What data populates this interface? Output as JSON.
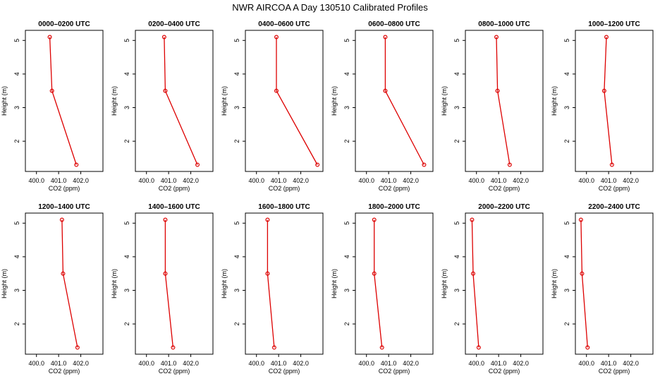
{
  "title": "NWR AIRCOA A  Day 130510  Calibrated Profiles",
  "colors": {
    "series": "#dd0000",
    "axis": "#000000",
    "background": "#ffffff"
  },
  "chart_data": [
    {
      "type": "line",
      "title": "0000–0200 UTC",
      "xlabel": "CO2 (ppm)",
      "ylabel": "Height (m)",
      "xlim": [
        399.5,
        403.0
      ],
      "ylim": [
        1.1,
        5.3
      ],
      "xticks": [
        400.0,
        401.0,
        402.0
      ],
      "xtick_labels": [
        "400.0",
        "401.0",
        "402.0"
      ],
      "yticks": [
        2,
        3,
        4,
        5
      ],
      "ytick_labels": [
        "2",
        "3",
        "4",
        "5"
      ],
      "x": [
        401.8,
        400.7,
        400.6
      ],
      "y": [
        1.3,
        3.5,
        5.1
      ]
    },
    {
      "type": "line",
      "title": "0200–0400 UTC",
      "xlabel": "CO2 (ppm)",
      "ylabel": "Height (m)",
      "xlim": [
        399.5,
        403.0
      ],
      "ylim": [
        1.1,
        5.3
      ],
      "xticks": [
        400.0,
        401.0,
        402.0
      ],
      "xtick_labels": [
        "400.0",
        "401.0",
        "402.0"
      ],
      "yticks": [
        2,
        3,
        4,
        5
      ],
      "ytick_labels": [
        "2",
        "3",
        "4",
        "5"
      ],
      "x": [
        402.3,
        400.85,
        400.8
      ],
      "y": [
        1.3,
        3.5,
        5.1
      ]
    },
    {
      "type": "line",
      "title": "0400–0600 UTC",
      "xlabel": "CO2 (ppm)",
      "ylabel": "Height (m)",
      "xlim": [
        399.5,
        403.0
      ],
      "ylim": [
        1.1,
        5.3
      ],
      "xticks": [
        400.0,
        401.0,
        402.0
      ],
      "xtick_labels": [
        "400.0",
        "401.0",
        "402.0"
      ],
      "yticks": [
        2,
        3,
        4,
        5
      ],
      "ytick_labels": [
        "2",
        "3",
        "4",
        "5"
      ],
      "x": [
        402.75,
        400.9,
        400.9
      ],
      "y": [
        1.3,
        3.5,
        5.1
      ]
    },
    {
      "type": "line",
      "title": "0600–0800 UTC",
      "xlabel": "CO2 (ppm)",
      "ylabel": "Height (m)",
      "xlim": [
        399.5,
        403.0
      ],
      "ylim": [
        1.1,
        5.3
      ],
      "xticks": [
        400.0,
        401.0,
        402.0
      ],
      "xtick_labels": [
        "400.0",
        "401.0",
        "402.0"
      ],
      "yticks": [
        2,
        3,
        4,
        5
      ],
      "ytick_labels": [
        "2",
        "3",
        "4",
        "5"
      ],
      "x": [
        402.6,
        400.85,
        400.85
      ],
      "y": [
        1.3,
        3.5,
        5.1
      ]
    },
    {
      "type": "line",
      "title": "0800–1000 UTC",
      "xlabel": "CO2 (ppm)",
      "ylabel": "Height (m)",
      "xlim": [
        399.5,
        403.0
      ],
      "ylim": [
        1.1,
        5.3
      ],
      "xticks": [
        400.0,
        401.0,
        402.0
      ],
      "xtick_labels": [
        "400.0",
        "401.0",
        "402.0"
      ],
      "yticks": [
        2,
        3,
        4,
        5
      ],
      "ytick_labels": [
        "2",
        "3",
        "4",
        "5"
      ],
      "x": [
        401.5,
        400.95,
        400.9
      ],
      "y": [
        1.3,
        3.5,
        5.1
      ]
    },
    {
      "type": "line",
      "title": "1000–1200 UTC",
      "xlabel": "CO2 (ppm)",
      "ylabel": "Height (m)",
      "xlim": [
        399.5,
        403.0
      ],
      "ylim": [
        1.1,
        5.3
      ],
      "xticks": [
        400.0,
        401.0,
        402.0
      ],
      "xtick_labels": [
        "400.0",
        "401.0",
        "402.0"
      ],
      "yticks": [
        2,
        3,
        4,
        5
      ],
      "ytick_labels": [
        "2",
        "3",
        "4",
        "5"
      ],
      "x": [
        401.15,
        400.8,
        400.9
      ],
      "y": [
        1.3,
        3.5,
        5.1
      ]
    },
    {
      "type": "line",
      "title": "1200–1400 UTC",
      "xlabel": "CO2 (ppm)",
      "ylabel": "Height (m)",
      "xlim": [
        399.5,
        403.0
      ],
      "ylim": [
        1.1,
        5.3
      ],
      "xticks": [
        400.0,
        401.0,
        402.0
      ],
      "xtick_labels": [
        "400.0",
        "401.0",
        "402.0"
      ],
      "yticks": [
        2,
        3,
        4,
        5
      ],
      "ytick_labels": [
        "2",
        "3",
        "4",
        "5"
      ],
      "x": [
        401.85,
        401.2,
        401.15
      ],
      "y": [
        1.3,
        3.5,
        5.1
      ]
    },
    {
      "type": "line",
      "title": "1400–1600 UTC",
      "xlabel": "CO2 (ppm)",
      "ylabel": "Height (m)",
      "xlim": [
        399.5,
        403.0
      ],
      "ylim": [
        1.1,
        5.3
      ],
      "xticks": [
        400.0,
        401.0,
        402.0
      ],
      "xtick_labels": [
        "400.0",
        "401.0",
        "402.0"
      ],
      "yticks": [
        2,
        3,
        4,
        5
      ],
      "ytick_labels": [
        "2",
        "3",
        "4",
        "5"
      ],
      "x": [
        401.2,
        400.85,
        400.85
      ],
      "y": [
        1.3,
        3.5,
        5.1
      ]
    },
    {
      "type": "line",
      "title": "1600–1800 UTC",
      "xlabel": "CO2 (ppm)",
      "ylabel": "Height (m)",
      "xlim": [
        399.5,
        403.0
      ],
      "ylim": [
        1.1,
        5.3
      ],
      "xticks": [
        400.0,
        401.0,
        402.0
      ],
      "xtick_labels": [
        "400.0",
        "401.0",
        "402.0"
      ],
      "yticks": [
        2,
        3,
        4,
        5
      ],
      "ytick_labels": [
        "2",
        "3",
        "4",
        "5"
      ],
      "x": [
        400.8,
        400.5,
        400.5
      ],
      "y": [
        1.3,
        3.5,
        5.1
      ]
    },
    {
      "type": "line",
      "title": "1800–2000 UTC",
      "xlabel": "CO2 (ppm)",
      "ylabel": "Height (m)",
      "xlim": [
        399.5,
        403.0
      ],
      "ylim": [
        1.1,
        5.3
      ],
      "xticks": [
        400.0,
        401.0,
        402.0
      ],
      "xtick_labels": [
        "400.0",
        "401.0",
        "402.0"
      ],
      "yticks": [
        2,
        3,
        4,
        5
      ],
      "ytick_labels": [
        "2",
        "3",
        "4",
        "5"
      ],
      "x": [
        400.7,
        400.35,
        400.35
      ],
      "y": [
        1.3,
        3.5,
        5.1
      ]
    },
    {
      "type": "line",
      "title": "2000–2200 UTC",
      "xlabel": "CO2 (ppm)",
      "ylabel": "Height (m)",
      "xlim": [
        399.5,
        403.0
      ],
      "ylim": [
        1.1,
        5.3
      ],
      "xticks": [
        400.0,
        401.0,
        402.0
      ],
      "xtick_labels": [
        "400.0",
        "401.0",
        "402.0"
      ],
      "yticks": [
        2,
        3,
        4,
        5
      ],
      "ytick_labels": [
        "2",
        "3",
        "4",
        "5"
      ],
      "x": [
        400.1,
        399.85,
        399.8
      ],
      "y": [
        1.3,
        3.5,
        5.1
      ]
    },
    {
      "type": "line",
      "title": "2200–2400 UTC",
      "xlabel": "CO2 (ppm)",
      "ylabel": "Height (m)",
      "xlim": [
        399.5,
        403.0
      ],
      "ylim": [
        1.1,
        5.3
      ],
      "xticks": [
        400.0,
        401.0,
        402.0
      ],
      "xtick_labels": [
        "400.0",
        "401.0",
        "402.0"
      ],
      "yticks": [
        2,
        3,
        4,
        5
      ],
      "ytick_labels": [
        "2",
        "3",
        "4",
        "5"
      ],
      "x": [
        400.05,
        399.8,
        399.75
      ],
      "y": [
        1.3,
        3.5,
        5.1
      ]
    }
  ]
}
